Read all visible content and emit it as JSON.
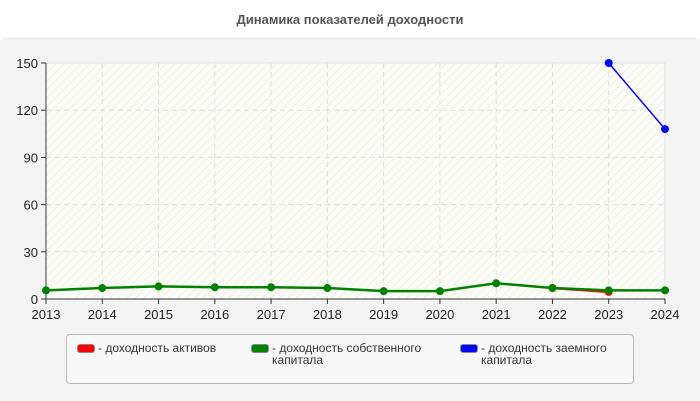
{
  "title": "Динамика показателей доходности",
  "chart_data": {
    "type": "line",
    "title": "Динамика показателей доходности",
    "xlabel": "",
    "ylabel": "",
    "x": [
      2013,
      2014,
      2015,
      2016,
      2017,
      2018,
      2019,
      2020,
      2021,
      2022,
      2023,
      2024
    ],
    "ylim": [
      0,
      150
    ],
    "yticks": [
      0,
      30,
      60,
      90,
      120,
      150
    ],
    "grid": true,
    "legend_position": "bottom",
    "series": [
      {
        "name": "- доходность активов",
        "color": "#ff0000",
        "values": [
          null,
          null,
          null,
          null,
          null,
          null,
          null,
          null,
          null,
          7,
          4.5,
          null
        ]
      },
      {
        "name": "- доходность собственного капитала",
        "color": "#008000",
        "values": [
          5.5,
          7,
          8,
          7.5,
          7.5,
          7,
          5,
          5,
          10,
          7,
          5.5,
          5.5
        ]
      },
      {
        "name": "- доходность заемного капитала",
        "color": "#0000ff",
        "values": [
          null,
          null,
          null,
          null,
          null,
          null,
          null,
          null,
          null,
          null,
          150,
          108
        ]
      }
    ]
  },
  "legend": {
    "items": [
      {
        "label": "- доходность активов",
        "color": "#ff0000"
      },
      {
        "label": "- доходность собственного капитала",
        "color": "#008000"
      },
      {
        "label": "- доходность заемного капитала",
        "color": "#0000ff"
      }
    ]
  }
}
